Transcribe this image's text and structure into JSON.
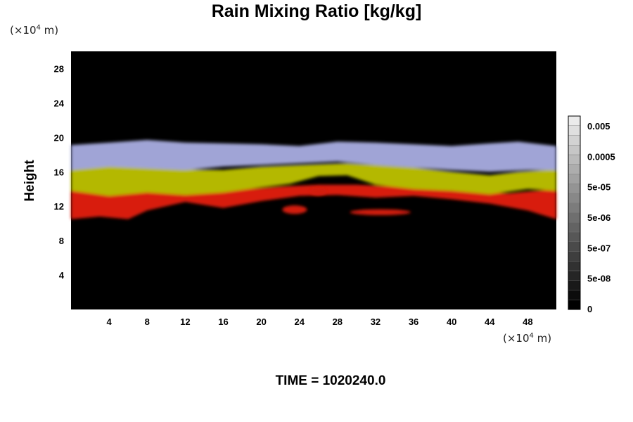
{
  "chart_data": {
    "type": "heatmap",
    "title": "Rain Mixing Ratio [kg/kg]",
    "ylabel": "Height",
    "xlabel": "",
    "x_unit": {
      "prefix": "(×10",
      "exp": "4",
      "suffix": " m)"
    },
    "y_unit": {
      "prefix": "(×10",
      "exp": "4",
      "suffix": " m)"
    },
    "xlim": [
      0,
      51
    ],
    "ylim": [
      0,
      30
    ],
    "x_ticks": [
      "4",
      "8",
      "12",
      "16",
      "20",
      "24",
      "28",
      "32",
      "36",
      "40",
      "44",
      "48"
    ],
    "y_ticks": [
      "4",
      "8",
      "12",
      "16",
      "20",
      "24",
      "28"
    ],
    "colorbar": {
      "labels": [
        "0.005",
        "0.0005",
        "5e-05",
        "5e-06",
        "5e-07",
        "5e-08",
        "0"
      ],
      "levels": 20
    },
    "bands": [
      {
        "name": "red",
        "color": "#d81a10",
        "points": [
          [
            0,
            10.5
          ],
          [
            3,
            10.8
          ],
          [
            6,
            10.5
          ],
          [
            8,
            11.5
          ],
          [
            12,
            12.5
          ],
          [
            16,
            11.8
          ],
          [
            20,
            12.6
          ],
          [
            24,
            13.2
          ],
          [
            28,
            13.3
          ],
          [
            32,
            13
          ],
          [
            36,
            13.2
          ],
          [
            40,
            12.8
          ],
          [
            44,
            12.3
          ],
          [
            48,
            11.5
          ],
          [
            51,
            10.5
          ],
          [
            51,
            14
          ],
          [
            46,
            13.5
          ],
          [
            40,
            13.8
          ],
          [
            36,
            14.2
          ],
          [
            30,
            14.5
          ],
          [
            26,
            14.5
          ],
          [
            22,
            14.3
          ],
          [
            16,
            13.8
          ],
          [
            10,
            13.6
          ],
          [
            4,
            13.8
          ],
          [
            0,
            14.2
          ]
        ]
      },
      {
        "name": "yellow",
        "color": "#b4b800",
        "points": [
          [
            0,
            13.8
          ],
          [
            4,
            13.2
          ],
          [
            8,
            13.6
          ],
          [
            12,
            13.3
          ],
          [
            16,
            13.6
          ],
          [
            20,
            14.2
          ],
          [
            23,
            14.6
          ],
          [
            26,
            15.5
          ],
          [
            29,
            15.6
          ],
          [
            32,
            14.5
          ],
          [
            36,
            14
          ],
          [
            40,
            13.8
          ],
          [
            44,
            13.4
          ],
          [
            48,
            14
          ],
          [
            51,
            13.8
          ],
          [
            51,
            16.3
          ],
          [
            47,
            16
          ],
          [
            44,
            15.6
          ],
          [
            40,
            16
          ],
          [
            36,
            16.5
          ],
          [
            32,
            16.8
          ],
          [
            29,
            17
          ],
          [
            24,
            16.8
          ],
          [
            20,
            16.6
          ],
          [
            16,
            16.2
          ],
          [
            12,
            16.3
          ],
          [
            8,
            16.6
          ],
          [
            4,
            16.8
          ],
          [
            0,
            16.5
          ]
        ]
      },
      {
        "name": "blue",
        "color": "#a0a4d6",
        "points": [
          [
            0,
            16.2
          ],
          [
            4,
            16.6
          ],
          [
            8,
            16.4
          ],
          [
            12,
            16.2
          ],
          [
            16,
            16.6
          ],
          [
            20,
            16.8
          ],
          [
            24,
            17
          ],
          [
            28,
            17.2
          ],
          [
            32,
            16.8
          ],
          [
            36,
            16.5
          ],
          [
            40,
            16.2
          ],
          [
            44,
            16
          ],
          [
            48,
            16.2
          ],
          [
            51,
            16.2
          ],
          [
            51,
            19
          ],
          [
            47,
            19.5
          ],
          [
            44,
            19.3
          ],
          [
            40,
            19
          ],
          [
            36,
            19.2
          ],
          [
            32,
            19.4
          ],
          [
            28,
            19.5
          ],
          [
            24,
            19
          ],
          [
            20,
            19.2
          ],
          [
            16,
            19.3
          ],
          [
            12,
            19.4
          ],
          [
            8,
            19.7
          ],
          [
            4,
            19.4
          ],
          [
            0,
            19.1
          ]
        ]
      }
    ],
    "blobs": [
      {
        "name": "red",
        "color": "#d21a10",
        "x": 23.5,
        "y": 11.6,
        "rx": 1.3,
        "ry": 0.5
      },
      {
        "name": "red",
        "color": "#d21a10",
        "x": 26,
        "y": 13.7,
        "rx": 0.9,
        "ry": 0.45
      },
      {
        "name": "red",
        "color": "#d21a10",
        "x": 32.5,
        "y": 11.3,
        "rx": 3.2,
        "ry": 0.35
      }
    ]
  },
  "time_label": "TIME = 1020240.0"
}
